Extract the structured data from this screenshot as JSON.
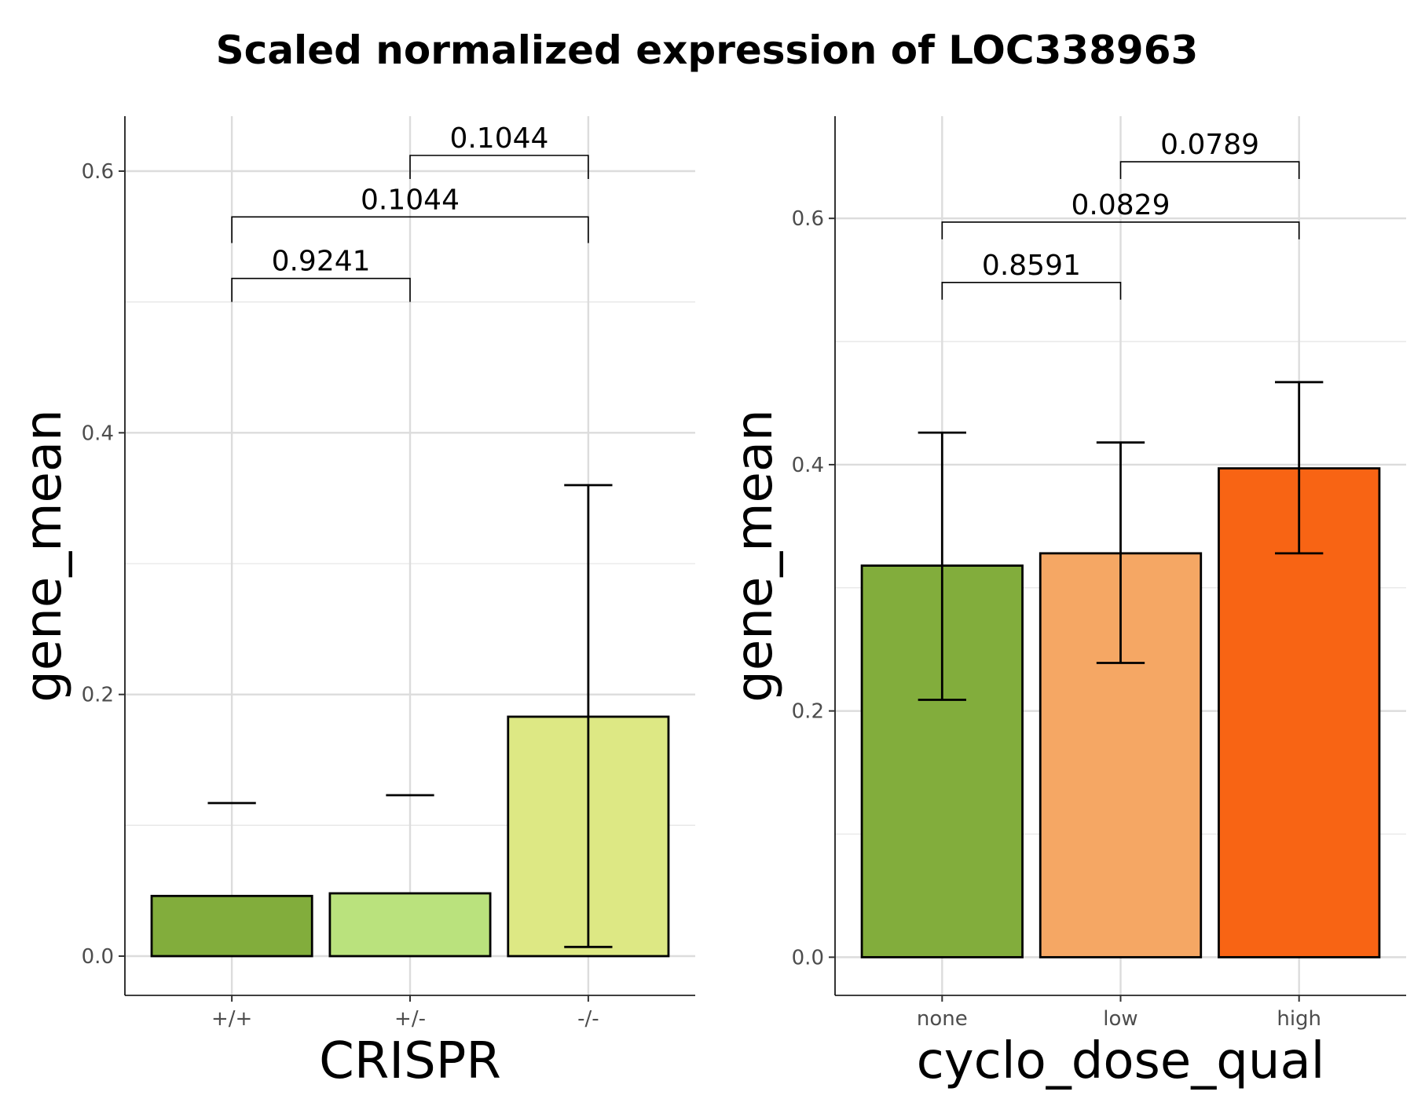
{
  "title": "Scaled normalized expression of LOC338963",
  "chart_data": [
    {
      "type": "bar",
      "xlabel": "CRISPR",
      "ylabel": "gene_mean",
      "categories": [
        "+/+",
        "+/-",
        "-/-"
      ],
      "values": [
        0.046,
        0.048,
        0.183
      ],
      "error_low": [
        null,
        null,
        0.007
      ],
      "error_high": [
        0.117,
        0.123,
        0.36
      ],
      "colors": [
        "#82AD3C",
        "#BAE27D",
        "#DDE884"
      ],
      "ylim": [
        -0.03,
        0.642
      ],
      "yticks": [
        0.0,
        0.2,
        0.4,
        0.6
      ],
      "ytick_labels": [
        "0.0",
        "0.2",
        "0.4",
        "0.6"
      ],
      "grid": true,
      "comparisons": [
        {
          "from": 0,
          "to": 1,
          "label": "0.9241",
          "y": 0.518,
          "drop_left": 0.5,
          "drop_right": 0.5
        },
        {
          "from": 0,
          "to": 2,
          "label": "0.1044",
          "y": 0.565,
          "drop_left": 0.545,
          "drop_right": 0.545
        },
        {
          "from": 1,
          "to": 2,
          "label": "0.1044",
          "y": 0.612,
          "drop_left": 0.594,
          "drop_right": 0.594
        }
      ]
    },
    {
      "type": "bar",
      "xlabel": "cyclo_dose_qual",
      "ylabel": "gene_mean",
      "categories": [
        "none",
        "low",
        "high"
      ],
      "values": [
        0.318,
        0.328,
        0.397
      ],
      "error_low": [
        0.209,
        0.239,
        0.328
      ],
      "error_high": [
        0.426,
        0.418,
        0.467
      ],
      "colors": [
        "#82AD3C",
        "#F5A764",
        "#F86414"
      ],
      "ylim": [
        -0.031,
        0.683
      ],
      "yticks": [
        0.0,
        0.2,
        0.4,
        0.6
      ],
      "ytick_labels": [
        "0.0",
        "0.2",
        "0.4",
        "0.6"
      ],
      "grid": true,
      "comparisons": [
        {
          "from": 0,
          "to": 1,
          "label": "0.8591",
          "y": 0.548,
          "drop_left": 0.534,
          "drop_right": 0.534
        },
        {
          "from": 0,
          "to": 2,
          "label": "0.0829",
          "y": 0.597,
          "drop_left": 0.583,
          "drop_right": 0.583
        },
        {
          "from": 1,
          "to": 2,
          "label": "0.0789",
          "y": 0.646,
          "drop_left": 0.632,
          "drop_right": 0.632
        }
      ]
    }
  ]
}
